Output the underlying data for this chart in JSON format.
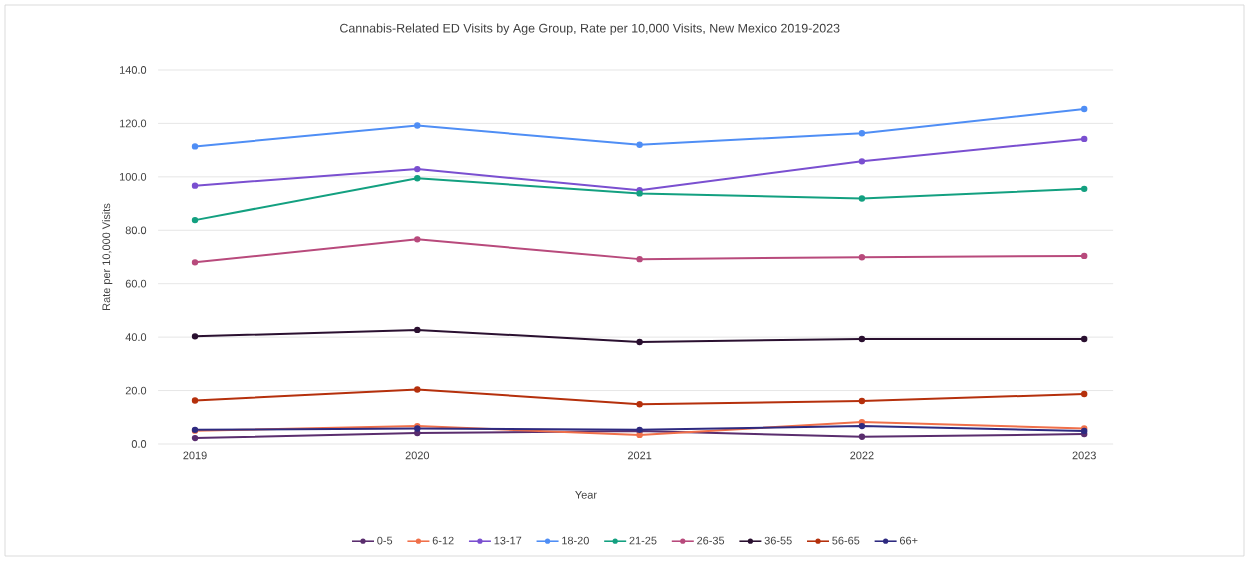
{
  "chart_data": {
    "type": "line",
    "title": "Cannabis-Related ED Visits by Age Group, Rate per 10,000 Visits, New Mexico 2019-2023",
    "xlabel": "Year",
    "ylabel": "Rate per 10,000 Visits",
    "categories": [
      "2019",
      "2020",
      "2021",
      "2022",
      "2023"
    ],
    "series": [
      {
        "name": "0-5",
        "color": "#5a2d6e",
        "values": [
          2.2,
          4.1,
          4.9,
          2.7,
          3.7
        ]
      },
      {
        "name": "6-12",
        "color": "#f0704a",
        "values": [
          5.0,
          6.7,
          3.4,
          8.2,
          5.8
        ]
      },
      {
        "name": "13-17",
        "color": "#7a4fd0",
        "values": [
          96.7,
          102.9,
          95.0,
          105.8,
          114.2
        ]
      },
      {
        "name": "18-20",
        "color": "#4f8ef5",
        "values": [
          111.4,
          119.2,
          112.0,
          116.3,
          125.4
        ]
      },
      {
        "name": "21-25",
        "color": "#13a080",
        "values": [
          83.8,
          99.5,
          93.8,
          91.9,
          95.5
        ]
      },
      {
        "name": "26-35",
        "color": "#b84a7c",
        "values": [
          68.0,
          76.6,
          69.2,
          69.9,
          70.4
        ]
      },
      {
        "name": "36-55",
        "color": "#2a1030",
        "values": [
          40.3,
          42.7,
          38.2,
          39.3,
          39.3
        ]
      },
      {
        "name": "56-65",
        "color": "#b5300c",
        "values": [
          16.3,
          20.4,
          14.9,
          16.1,
          18.7
        ]
      },
      {
        "name": "66+",
        "color": "#2e2a80",
        "values": [
          5.3,
          5.8,
          5.3,
          6.7,
          4.9
        ]
      }
    ],
    "ylim": [
      0,
      140
    ],
    "yticks": [
      {
        "value": 0,
        "label": "0.0"
      },
      {
        "value": 20,
        "label": "20.0"
      },
      {
        "value": 40,
        "label": "40.0"
      },
      {
        "value": 60,
        "label": "60.0"
      },
      {
        "value": 80,
        "label": "80.0"
      },
      {
        "value": 100,
        "label": "100.0"
      },
      {
        "value": 120,
        "label": "120.0"
      },
      {
        "value": 140,
        "label": "140.0"
      }
    ],
    "grid": "y",
    "legend": "bottom",
    "marker": "circle",
    "line_style": "solid"
  }
}
